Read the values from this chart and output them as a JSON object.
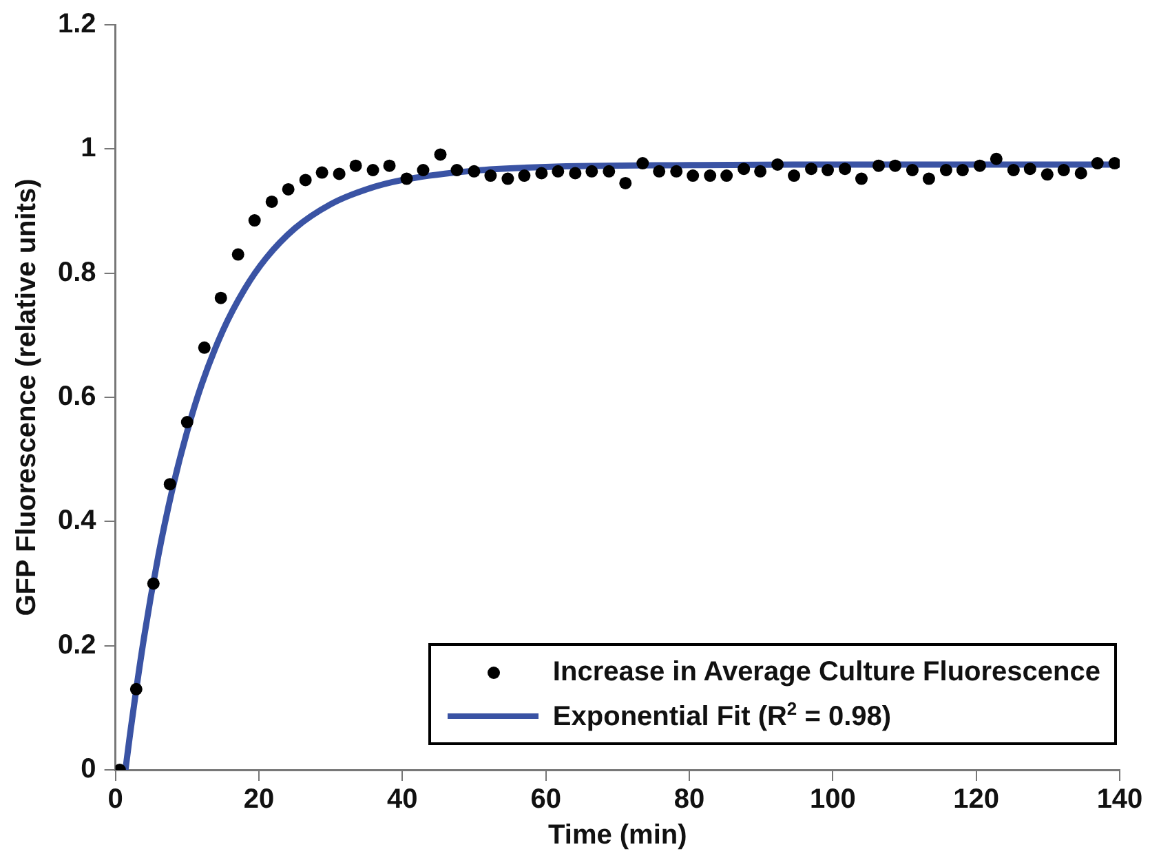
{
  "chart_data": {
    "type": "scatter",
    "xlabel": "Time (min)",
    "ylabel": "GFP Fluorescence (relative units)",
    "xlim": [
      0,
      140
    ],
    "xticks": [
      0,
      20,
      40,
      60,
      80,
      100,
      120,
      140
    ],
    "ylim": [
      0,
      1.2
    ],
    "yticks": [
      0,
      0.2,
      0.4,
      0.6,
      0.8,
      1,
      1.2
    ],
    "legend": "bottom right",
    "marker": "circle",
    "x": [
      0.6,
      2.9,
      5.3,
      7.6,
      10.0,
      12.4,
      14.7,
      17.1,
      19.4,
      21.8,
      24.1,
      26.5,
      28.8,
      31.2,
      33.5,
      35.9,
      38.2,
      40.6,
      42.9,
      45.3,
      47.6,
      50.0,
      52.3,
      54.7,
      57.0,
      59.4,
      61.7,
      64.1,
      66.4,
      68.8,
      71.1,
      73.5,
      75.8,
      78.2,
      80.5,
      82.9,
      85.2,
      87.6,
      89.9,
      92.3,
      94.6,
      97.0,
      99.3,
      101.7,
      104.0,
      106.4,
      108.7,
      111.1,
      113.4,
      115.8,
      118.1,
      120.5,
      122.8,
      125.2,
      127.5,
      129.9,
      132.2,
      134.6,
      136.9,
      139.3
    ],
    "series": [
      {
        "name": "Increase in Average Culture Fluorescence",
        "color": "#000000",
        "values": [
          0,
          0.13,
          0.3,
          0.46,
          0.56,
          0.68,
          0.76,
          0.83,
          0.885,
          0.915,
          0.935,
          0.95,
          0.962,
          0.96,
          0.973,
          0.966,
          0.973,
          0.952,
          0.966,
          0.991,
          0.966,
          0.964,
          0.957,
          0.952,
          0.957,
          0.961,
          0.964,
          0.961,
          0.964,
          0.964,
          0.945,
          0.977,
          0.964,
          0.964,
          0.957,
          0.957,
          0.957,
          0.968,
          0.964,
          0.975,
          0.957,
          0.968,
          0.966,
          0.968,
          0.952,
          0.973,
          0.973,
          0.966,
          0.952,
          0.966,
          0.966,
          0.973,
          0.984,
          0.966,
          0.968,
          0.959,
          0.966,
          0.961,
          0.977,
          0.977
        ]
      },
      {
        "name": "Exponential Fit (R$^{2}$ = 0.98)",
        "type": "line",
        "marker": "none",
        "line_style": "solid",
        "color": "#3a53a4",
        "x": [
          1.4,
          2,
          4,
          6,
          8,
          10,
          12,
          15,
          18,
          21,
          25,
          30,
          35,
          40,
          50,
          60,
          80,
          100,
          120,
          140
        ],
        "values": [
          0,
          0.054,
          0.214,
          0.346,
          0.455,
          0.545,
          0.62,
          0.708,
          0.774,
          0.824,
          0.872,
          0.911,
          0.935,
          0.95,
          0.965,
          0.971,
          0.974,
          0.975,
          0.975,
          0.975
        ]
      }
    ]
  }
}
